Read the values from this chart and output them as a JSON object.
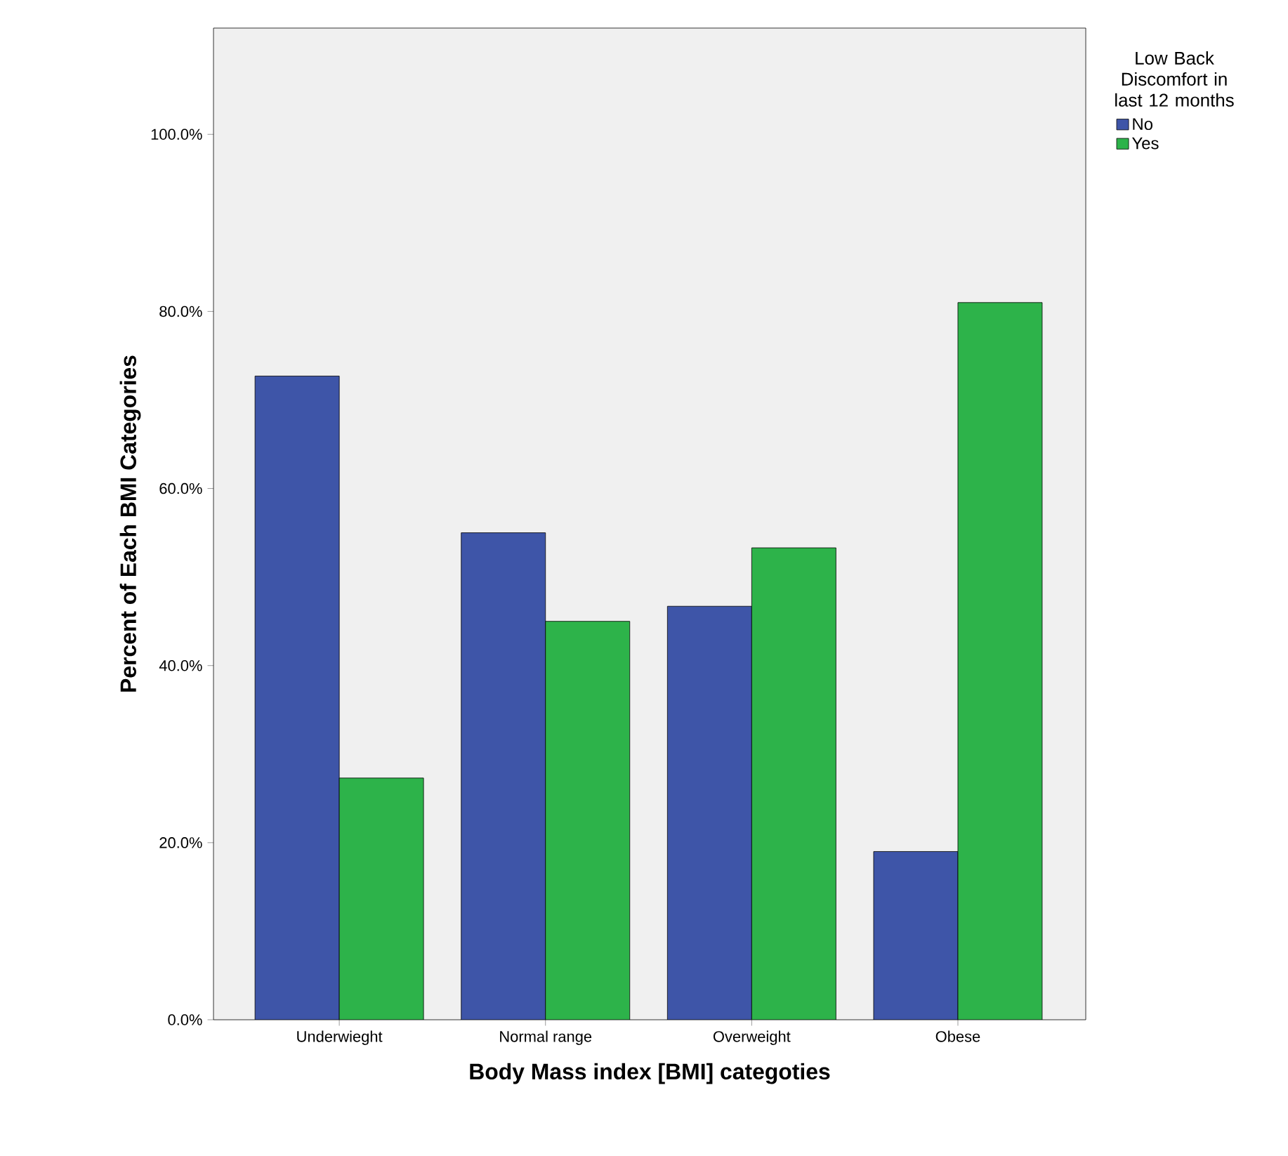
{
  "chart_data": {
    "type": "bar",
    "xlabel": "Body Mass index [BMI] categoties",
    "ylabel": "Percent of Each BMI Categories",
    "legend_title": "Low Back Discomfort in last 12 months",
    "categories": [
      "Underwieght",
      "Normal range",
      "Overweight",
      "Obese"
    ],
    "series": [
      {
        "name": "No",
        "color": "#3e55a8",
        "values": [
          72.7,
          55.0,
          46.7,
          19.0
        ]
      },
      {
        "name": "Yes",
        "color": "#2db34a",
        "values": [
          27.3,
          45.0,
          53.3,
          81.0
        ]
      }
    ],
    "ylim": [
      0,
      112
    ],
    "yticks": [
      {
        "value": 0,
        "label": "0.0%"
      },
      {
        "value": 20,
        "label": "20.0%"
      },
      {
        "value": 40,
        "label": "40.0%"
      },
      {
        "value": 60,
        "label": "60.0%"
      },
      {
        "value": 80,
        "label": "80.0%"
      },
      {
        "value": 100,
        "label": "100.0%"
      }
    ],
    "grid": false,
    "legend": "top right"
  }
}
